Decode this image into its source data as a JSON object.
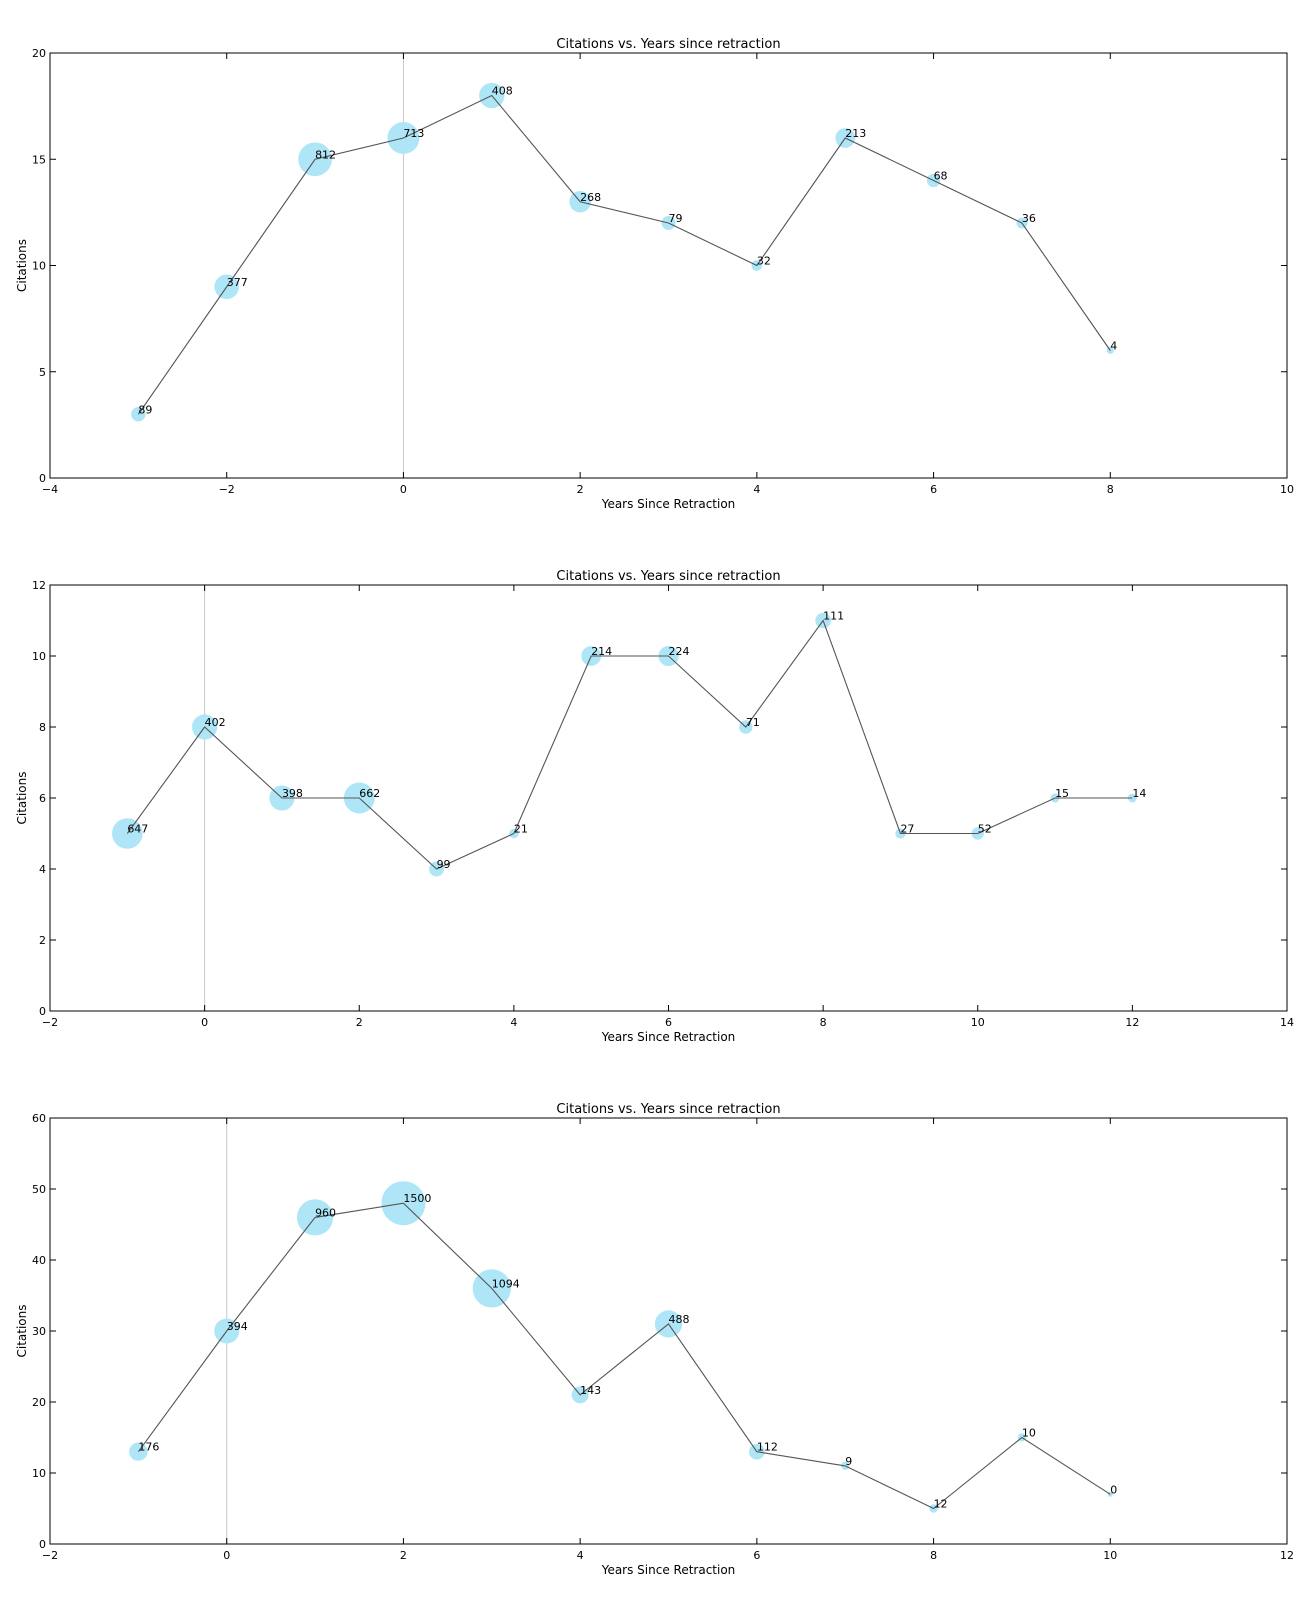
{
  "chart_data": [
    {
      "type": "scatter",
      "title": "Citations vs. Years since retraction",
      "xlabel": "Years Since Retraction",
      "ylabel": "Citations",
      "xlim": [
        -4,
        10
      ],
      "ylim": [
        0,
        20
      ],
      "xticks": [
        -4,
        -2,
        0,
        2,
        4,
        6,
        8,
        10
      ],
      "yticks": [
        0,
        5,
        10,
        15,
        20
      ],
      "xtick_labels": [
        "−4",
        "−2",
        "0",
        "2",
        "4",
        "6",
        "8",
        "10"
      ],
      "ytick_labels": [
        "0",
        "5",
        "10",
        "15",
        "20"
      ],
      "retraction_line_x": 0,
      "grid": false,
      "marker_color": "#aee6f7",
      "line_color": "#555555",
      "points": [
        {
          "x": -3,
          "y": 3,
          "size": 89,
          "label": "89"
        },
        {
          "x": -2,
          "y": 9,
          "size": 377,
          "label": "377"
        },
        {
          "x": -1,
          "y": 15,
          "size": 812,
          "label": "812"
        },
        {
          "x": 0,
          "y": 16,
          "size": 713,
          "label": "713"
        },
        {
          "x": 1,
          "y": 18,
          "size": 408,
          "label": "408"
        },
        {
          "x": 2,
          "y": 13,
          "size": 268,
          "label": "268"
        },
        {
          "x": 3,
          "y": 12,
          "size": 79,
          "label": "79"
        },
        {
          "x": 4,
          "y": 10,
          "size": 32,
          "label": "32"
        },
        {
          "x": 5,
          "y": 16,
          "size": 213,
          "label": "213"
        },
        {
          "x": 6,
          "y": 14,
          "size": 68,
          "label": "68"
        },
        {
          "x": 7,
          "y": 12,
          "size": 36,
          "label": "36"
        },
        {
          "x": 8,
          "y": 6,
          "size": 4,
          "label": "4"
        }
      ]
    },
    {
      "type": "scatter",
      "title": "Citations vs. Years since retraction",
      "xlabel": "Years Since Retraction",
      "ylabel": "Citations",
      "xlim": [
        -2,
        14
      ],
      "ylim": [
        0,
        12
      ],
      "xticks": [
        -2,
        0,
        2,
        4,
        6,
        8,
        10,
        12,
        14
      ],
      "yticks": [
        0,
        2,
        4,
        6,
        8,
        10,
        12
      ],
      "xtick_labels": [
        "−2",
        "0",
        "2",
        "4",
        "6",
        "8",
        "10",
        "12",
        "14"
      ],
      "ytick_labels": [
        "0",
        "2",
        "4",
        "6",
        "8",
        "10",
        "12"
      ],
      "retraction_line_x": 0,
      "grid": false,
      "marker_color": "#aee6f7",
      "line_color": "#555555",
      "points": [
        {
          "x": -1,
          "y": 5,
          "size": 647,
          "label": "647"
        },
        {
          "x": 0,
          "y": 8,
          "size": 402,
          "label": "402"
        },
        {
          "x": 1,
          "y": 6,
          "size": 398,
          "label": "398"
        },
        {
          "x": 2,
          "y": 6,
          "size": 662,
          "label": "662"
        },
        {
          "x": 3,
          "y": 4,
          "size": 99,
          "label": "99"
        },
        {
          "x": 4,
          "y": 5,
          "size": 21,
          "label": "21"
        },
        {
          "x": 5,
          "y": 10,
          "size": 214,
          "label": "214"
        },
        {
          "x": 6,
          "y": 10,
          "size": 224,
          "label": "224"
        },
        {
          "x": 7,
          "y": 8,
          "size": 71,
          "label": "71"
        },
        {
          "x": 8,
          "y": 11,
          "size": 111,
          "label": "111"
        },
        {
          "x": 9,
          "y": 5,
          "size": 27,
          "label": "27"
        },
        {
          "x": 10,
          "y": 5,
          "size": 52,
          "label": "52"
        },
        {
          "x": 11,
          "y": 6,
          "size": 15,
          "label": "15"
        },
        {
          "x": 12,
          "y": 6,
          "size": 14,
          "label": "14"
        }
      ]
    },
    {
      "type": "scatter",
      "title": "Citations vs. Years since retraction",
      "xlabel": "Years Since Retraction",
      "ylabel": "Citations",
      "xlim": [
        -2,
        12
      ],
      "ylim": [
        0,
        60
      ],
      "xticks": [
        -2,
        0,
        2,
        4,
        6,
        8,
        10,
        12
      ],
      "yticks": [
        0,
        10,
        20,
        30,
        40,
        50,
        60
      ],
      "xtick_labels": [
        "−2",
        "0",
        "2",
        "4",
        "6",
        "8",
        "10",
        "12"
      ],
      "ytick_labels": [
        "0",
        "10",
        "20",
        "30",
        "40",
        "50",
        "60"
      ],
      "retraction_line_x": 0,
      "grid": false,
      "marker_color": "#aee6f7",
      "line_color": "#555555",
      "points": [
        {
          "x": -1,
          "y": 13,
          "size": 176,
          "label": "176"
        },
        {
          "x": 0,
          "y": 30,
          "size": 394,
          "label": "394"
        },
        {
          "x": 1,
          "y": 46,
          "size": 960,
          "label": "960"
        },
        {
          "x": 2,
          "y": 48,
          "size": 1500,
          "label": "1500"
        },
        {
          "x": 3,
          "y": 36,
          "size": 1094,
          "label": "1094"
        },
        {
          "x": 4,
          "y": 21,
          "size": 143,
          "label": "143"
        },
        {
          "x": 5,
          "y": 31,
          "size": 488,
          "label": "488"
        },
        {
          "x": 6,
          "y": 13,
          "size": 112,
          "label": "112"
        },
        {
          "x": 7,
          "y": 11,
          "size": 9,
          "label": "9"
        },
        {
          "x": 8,
          "y": 5,
          "size": 12,
          "label": "12"
        },
        {
          "x": 9,
          "y": 15,
          "size": 10,
          "label": "10"
        },
        {
          "x": 10,
          "y": 7,
          "size": 0,
          "label": "0"
        }
      ]
    }
  ]
}
